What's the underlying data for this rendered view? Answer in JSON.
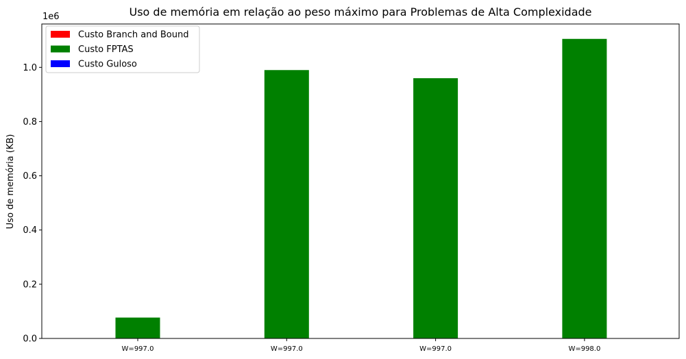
{
  "chart_data": {
    "type": "bar",
    "title": "Uso de memória em relação ao peso máximo para Problemas de Alta Complexidade",
    "xlabel": "",
    "ylabel": "Uso de memória (KB)",
    "y_offset_text": "1e6",
    "categories": [
      "W=997.0",
      "W=997.0",
      "W=997.0",
      "W=998.0"
    ],
    "ylim": [
      0,
      1160000
    ],
    "yticks": [
      {
        "value": 0,
        "label": "0.0"
      },
      {
        "value": 200000,
        "label": "0.2"
      },
      {
        "value": 400000,
        "label": "0.4"
      },
      {
        "value": 600000,
        "label": "0.6"
      },
      {
        "value": 800000,
        "label": "0.8"
      },
      {
        "value": 1000000,
        "label": "1.0"
      }
    ],
    "grid": false,
    "legend_position": "top-left",
    "series": [
      {
        "name": "Custo Branch and Bound",
        "color": "#ff0000",
        "values": [
          0,
          0,
          0,
          0
        ]
      },
      {
        "name": "Custo FPTAS",
        "color": "#008000",
        "values": [
          77000,
          990000,
          960000,
          1105000
        ]
      },
      {
        "name": "Custo Guloso",
        "color": "#0000ff",
        "values": [
          0,
          0,
          0,
          0
        ]
      }
    ]
  }
}
